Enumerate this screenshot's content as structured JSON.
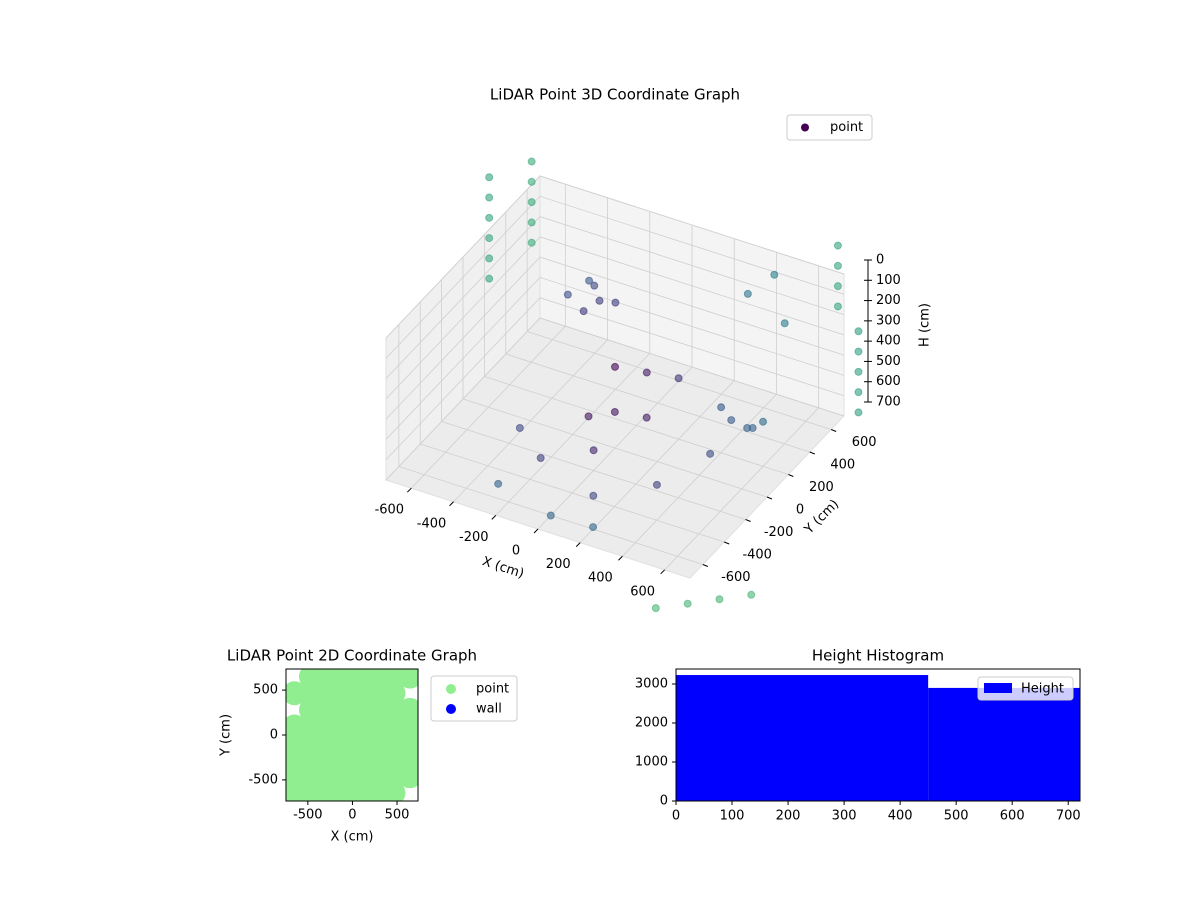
{
  "chart_data": [
    {
      "type": "scatter3d",
      "title": "LiDAR Point 3D Coordinate Graph",
      "xlabel": "X (cm)",
      "ylabel": "Y (cm)",
      "zlabel": "H (cm)",
      "xlim": [
        -720,
        720
      ],
      "ylim": [
        -720,
        720
      ],
      "zlim": [
        0,
        700
      ],
      "z_inverted": true,
      "xticks": [
        -600,
        -400,
        -200,
        0,
        200,
        400,
        600
      ],
      "yticks": [
        -600,
        -400,
        -200,
        0,
        200,
        400,
        600
      ],
      "zticks": [
        0,
        100,
        200,
        300,
        400,
        500,
        600,
        700
      ],
      "grid": true,
      "colormap": "viridis",
      "legend": "upper right",
      "series": [
        {
          "name": "point",
          "color": "#440154",
          "x": [
            -250,
            -200,
            -300,
            -150,
            -250,
            -350,
            0,
            100,
            200,
            50,
            150,
            -100,
            0,
            -200,
            100,
            300,
            400,
            500,
            300,
            -400,
            -300,
            0,
            200,
            500,
            550,
            600,
            -900,
            -900,
            -900,
            -900,
            -900,
            -900,
            -800,
            -800,
            -800,
            -800,
            -800,
            600,
            600,
            600,
            600,
            900,
            900,
            900,
            900,
            900,
            800,
            900,
            1000,
            700,
            400,
            300,
            500
          ],
          "y": [
            300,
            250,
            350,
            300,
            200,
            250,
            0,
            100,
            200,
            -100,
            0,
            -50,
            -200,
            -300,
            -400,
            -200,
            100,
            300,
            400,
            -100,
            -500,
            -600,
            -600,
            100,
            150,
            200,
            600,
            600,
            600,
            600,
            600,
            600,
            800,
            800,
            800,
            800,
            800,
            900,
            900,
            900,
            900,
            500,
            500,
            500,
            500,
            500,
            -900,
            -800,
            -700,
            -1000,
            700,
            650,
            600
          ],
          "z": [
            150,
            180,
            170,
            200,
            220,
            200,
            300,
            350,
            400,
            450,
            500,
            550,
            600,
            650,
            680,
            670,
            650,
            600,
            620,
            680,
            700,
            700,
            690,
            450,
            500,
            480,
            0,
            100,
            200,
            300,
            400,
            500,
            0,
            100,
            200,
            300,
            400,
            0,
            100,
            200,
            300,
            100,
            200,
            300,
            400,
            500,
            700,
            700,
            700,
            700,
            100,
            200,
            250
          ]
        }
      ]
    },
    {
      "type": "scatter",
      "title": "LiDAR Point 2D Coordinate Graph",
      "xlabel": "X (cm)",
      "ylabel": "Y (cm)",
      "xlim": [
        -745,
        735
      ],
      "ylim": [
        -735,
        735
      ],
      "xticks": [
        -500,
        0,
        500
      ],
      "yticks": [
        -500,
        0,
        500
      ],
      "legend": "outside right",
      "series": [
        {
          "name": "point",
          "color": "#90ee90",
          "x": [
            -465,
            -280,
            -95,
            90,
            275,
            460,
            645,
            -650,
            -465,
            -280,
            -95,
            90,
            275,
            460,
            -465,
            -280,
            -95,
            90,
            275,
            460,
            645,
            -650,
            -465,
            -280,
            -95,
            90,
            275,
            460,
            645,
            -650,
            -465,
            -280,
            -95,
            90,
            275,
            460,
            645,
            -650,
            -465,
            -280,
            -95,
            90,
            275,
            460,
            645,
            -650,
            -465,
            -280,
            -95,
            90,
            275,
            460,
            645,
            -650,
            -465,
            -280,
            -95,
            90,
            275,
            460
          ],
          "y": [
            650,
            650,
            650,
            650,
            650,
            650,
            650,
            465,
            465,
            465,
            465,
            465,
            465,
            465,
            280,
            280,
            280,
            280,
            280,
            280,
            280,
            95,
            95,
            95,
            95,
            95,
            95,
            95,
            95,
            -90,
            -90,
            -90,
            -90,
            -90,
            -90,
            -90,
            -90,
            -275,
            -275,
            -275,
            -275,
            -275,
            -275,
            -275,
            -275,
            -460,
            -460,
            -460,
            -460,
            -460,
            -460,
            -460,
            -460,
            -645,
            -645,
            -645,
            -645,
            -645,
            -645,
            -645
          ]
        },
        {
          "name": "wall",
          "color": "#0000ff",
          "x": [],
          "y": []
        }
      ]
    },
    {
      "type": "histogram",
      "title": "Height Histogram",
      "bins": [
        0,
        450,
        721
      ],
      "xlim": [
        0,
        721
      ],
      "ylim": [
        0,
        3385
      ],
      "xticks": [
        0,
        100,
        200,
        300,
        400,
        500,
        600,
        700
      ],
      "yticks": [
        0,
        1000,
        2000,
        3000
      ],
      "legend": "upper right",
      "series": [
        {
          "name": "Height",
          "color": "#0000ff",
          "values": [
            3230,
            2900
          ]
        }
      ]
    }
  ]
}
